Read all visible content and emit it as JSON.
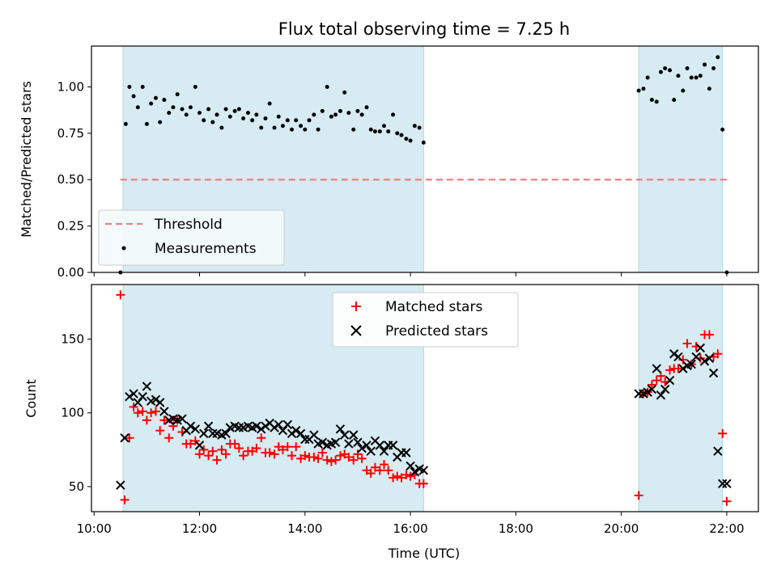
{
  "chart_data": [
    {
      "type": "scatter",
      "title": "Flux total observing time = 7.25 h",
      "xlabel": "",
      "ylabel": "Matched/Predicted stars",
      "ylim": [
        0,
        1.22
      ],
      "yticks": [
        "0.00",
        "0.25",
        "0.50",
        "0.75",
        "1.00"
      ],
      "ytick_values": [
        0,
        0.25,
        0.5,
        0.75,
        1.0
      ],
      "xlim_hours": [
        9.95,
        22.6
      ],
      "grid": false,
      "legend_position": "lower-left",
      "shaded_intervals_hours": [
        [
          10.55,
          16.25
        ],
        [
          20.33,
          21.92
        ]
      ],
      "threshold": {
        "name": "Threshold",
        "value": 0.5,
        "x_hours": [
          10.5,
          22.0
        ],
        "color": "#f08080"
      },
      "series": [
        {
          "name": "Measurements",
          "color": "#000000",
          "x_hours": [
            10.5,
            10.6,
            10.67,
            10.75,
            10.83,
            10.92,
            11.0,
            11.08,
            11.17,
            11.25,
            11.33,
            11.42,
            11.5,
            11.58,
            11.67,
            11.75,
            11.83,
            11.92,
            12.0,
            12.08,
            12.17,
            12.25,
            12.33,
            12.42,
            12.5,
            12.58,
            12.67,
            12.75,
            12.83,
            12.92,
            13.0,
            13.08,
            13.17,
            13.25,
            13.33,
            13.42,
            13.5,
            13.58,
            13.67,
            13.75,
            13.83,
            13.92,
            14.0,
            14.08,
            14.17,
            14.25,
            14.33,
            14.42,
            14.5,
            14.58,
            14.67,
            14.75,
            14.83,
            14.92,
            15.0,
            15.08,
            15.17,
            15.25,
            15.33,
            15.42,
            15.5,
            15.58,
            15.67,
            15.75,
            15.83,
            15.92,
            16.0,
            16.08,
            16.17,
            16.25,
            20.33,
            20.42,
            20.5,
            20.58,
            20.67,
            20.75,
            20.83,
            20.92,
            21.0,
            21.08,
            21.17,
            21.25,
            21.33,
            21.42,
            21.5,
            21.58,
            21.67,
            21.75,
            21.83,
            21.92,
            22.0
          ],
          "y": [
            0.0,
            0.8,
            1.0,
            0.95,
            0.89,
            1.0,
            0.8,
            0.91,
            0.94,
            0.81,
            0.93,
            0.86,
            0.89,
            0.96,
            0.88,
            0.85,
            0.89,
            1.0,
            0.86,
            0.82,
            0.88,
            0.81,
            0.85,
            0.78,
            0.88,
            0.84,
            0.87,
            0.88,
            0.83,
            0.86,
            0.82,
            0.85,
            0.78,
            0.83,
            0.91,
            0.78,
            0.84,
            0.79,
            0.82,
            0.77,
            0.82,
            0.79,
            0.77,
            0.82,
            0.85,
            0.77,
            0.87,
            1.0,
            0.84,
            0.85,
            0.87,
            0.97,
            0.86,
            0.77,
            0.87,
            0.85,
            0.89,
            0.77,
            0.76,
            0.76,
            0.79,
            0.76,
            0.85,
            0.75,
            0.74,
            0.72,
            0.71,
            0.79,
            0.78,
            0.7,
            0.98,
            0.99,
            1.05,
            0.93,
            0.92,
            1.08,
            1.1,
            1.09,
            0.93,
            1.06,
            0.98,
            1.1,
            1.05,
            1.05,
            1.06,
            1.12,
            0.99,
            1.1,
            1.16,
            0.77,
            0.0
          ]
        }
      ]
    },
    {
      "type": "scatter",
      "title": "",
      "xlabel": "Time (UTC)",
      "ylabel": "Count",
      "ylim": [
        33,
        187
      ],
      "yticks": [
        "50",
        "100",
        "150"
      ],
      "ytick_values": [
        50,
        100,
        150
      ],
      "xlim_hours": [
        9.95,
        22.6
      ],
      "xticks": [
        "10:00",
        "12:00",
        "14:00",
        "16:00",
        "18:00",
        "20:00",
        "22:00"
      ],
      "xtick_hours": [
        10,
        12,
        14,
        16,
        18,
        20,
        22
      ],
      "grid": false,
      "legend_position": "upper-center",
      "shaded_intervals_hours": [
        [
          10.55,
          16.25
        ],
        [
          20.33,
          21.92
        ]
      ],
      "series": [
        {
          "name": "Matched stars",
          "marker": "plus",
          "color": "#ff0000",
          "x_hours": [
            10.5,
            10.58,
            10.67,
            10.75,
            10.83,
            10.92,
            11.0,
            11.08,
            11.17,
            11.25,
            11.33,
            11.42,
            11.5,
            11.58,
            11.67,
            11.75,
            11.83,
            11.92,
            12.0,
            12.08,
            12.17,
            12.25,
            12.33,
            12.42,
            12.5,
            12.58,
            12.67,
            12.75,
            12.83,
            12.92,
            13.0,
            13.08,
            13.17,
            13.25,
            13.33,
            13.42,
            13.5,
            13.58,
            13.67,
            13.75,
            13.83,
            13.92,
            14.0,
            14.08,
            14.17,
            14.25,
            14.33,
            14.42,
            14.5,
            14.58,
            14.67,
            14.75,
            14.83,
            14.92,
            15.0,
            15.08,
            15.17,
            15.25,
            15.33,
            15.42,
            15.5,
            15.58,
            15.67,
            15.75,
            15.83,
            15.92,
            16.0,
            16.08,
            16.17,
            16.25,
            20.33,
            20.42,
            20.5,
            20.58,
            20.67,
            20.75,
            20.83,
            20.92,
            21.0,
            21.08,
            21.17,
            21.25,
            21.33,
            21.42,
            21.5,
            21.58,
            21.67,
            21.75,
            21.83,
            21.92,
            22.0
          ],
          "y": [
            180,
            41,
            83,
            104,
            100,
            101,
            95,
            100,
            101,
            88,
            95,
            83,
            91,
            95,
            87,
            79,
            79,
            81,
            72,
            75,
            71,
            74,
            68,
            75,
            72,
            79,
            79,
            76,
            71,
            74,
            74,
            76,
            83,
            73,
            73,
            72,
            77,
            75,
            77,
            71,
            77,
            69,
            71,
            70,
            70,
            69,
            73,
            68,
            67,
            68,
            71,
            72,
            70,
            68,
            72,
            69,
            61,
            59,
            63,
            61,
            65,
            61,
            56,
            57,
            56,
            58,
            57,
            58,
            52,
            52,
            44,
            113,
            114,
            119,
            122,
            125,
            121,
            129,
            130,
            130,
            136,
            147,
            133,
            145,
            137,
            153,
            153,
            138,
            140,
            86,
            40
          ]
        },
        {
          "name": "Predicted stars",
          "marker": "x",
          "color": "#000000",
          "x_hours": [
            10.5,
            10.58,
            10.67,
            10.75,
            10.83,
            10.92,
            11.0,
            11.08,
            11.17,
            11.25,
            11.33,
            11.42,
            11.5,
            11.58,
            11.67,
            11.75,
            11.83,
            11.92,
            12.0,
            12.08,
            12.17,
            12.25,
            12.33,
            12.42,
            12.5,
            12.58,
            12.67,
            12.75,
            12.83,
            12.92,
            13.0,
            13.08,
            13.17,
            13.25,
            13.33,
            13.42,
            13.5,
            13.58,
            13.67,
            13.75,
            13.83,
            13.92,
            14.0,
            14.08,
            14.17,
            14.25,
            14.33,
            14.42,
            14.5,
            14.58,
            14.67,
            14.75,
            14.83,
            14.92,
            15.0,
            15.08,
            15.17,
            15.25,
            15.33,
            15.42,
            15.5,
            15.58,
            15.67,
            15.75,
            15.83,
            15.92,
            16.0,
            16.08,
            16.17,
            16.25,
            20.33,
            20.42,
            20.5,
            20.58,
            20.67,
            20.75,
            20.83,
            20.92,
            21.0,
            21.08,
            21.17,
            21.25,
            21.33,
            21.42,
            21.5,
            21.58,
            21.67,
            21.75,
            21.83,
            21.92,
            22.0
          ],
          "y": [
            51,
            83,
            111,
            113,
            107,
            111,
            118,
            108,
            109,
            107,
            101,
            95,
            96,
            95,
            96,
            88,
            91,
            89,
            78,
            86,
            91,
            86,
            86,
            85,
            86,
            90,
            91,
            90,
            90,
            91,
            90,
            91,
            89,
            91,
            93,
            90,
            92,
            88,
            92,
            86,
            88,
            86,
            82,
            82,
            85,
            79,
            80,
            78,
            79,
            80,
            89,
            85,
            79,
            85,
            80,
            76,
            78,
            74,
            81,
            78,
            74,
            78,
            78,
            70,
            73,
            73,
            64,
            60,
            62,
            61,
            113,
            113,
            114,
            116,
            130,
            112,
            116,
            122,
            140,
            138,
            130,
            132,
            133,
            138,
            144,
            135,
            137,
            127,
            74,
            52,
            52
          ]
        }
      ]
    }
  ]
}
